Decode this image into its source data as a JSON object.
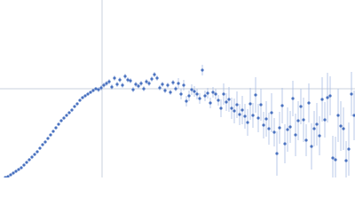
{
  "chart_data": {
    "type": "scatter",
    "xlim": [
      0,
      400
    ],
    "ylim": [
      0,
      200
    ],
    "series": [
      {
        "color": "#4a72c0",
        "error_color": "#a9bde3",
        "x": [
          6,
          9,
          12,
          15,
          18,
          21,
          24,
          27,
          30,
          33,
          36,
          39,
          42,
          45,
          48,
          51,
          54,
          57,
          60,
          63,
          66,
          69,
          72,
          75,
          78,
          81,
          84,
          87,
          90,
          93,
          96,
          99,
          102,
          105,
          108,
          111,
          114,
          117,
          120,
          123,
          126,
          129,
          132,
          135,
          138,
          141,
          144,
          147,
          150,
          153,
          156,
          159,
          162,
          165,
          168,
          171,
          174,
          177,
          180,
          183,
          186,
          189,
          192,
          195,
          198,
          201,
          204,
          207,
          210,
          213,
          216,
          219,
          222,
          225,
          228,
          231,
          234,
          237,
          240,
          243,
          246,
          249,
          252,
          255,
          258,
          261,
          264,
          267,
          270,
          273,
          276,
          279,
          282,
          285,
          288,
          291,
          294,
          297,
          300,
          303,
          306,
          309,
          312,
          315,
          318,
          321,
          324,
          327,
          330,
          333,
          336,
          339,
          342,
          345,
          348,
          351,
          354,
          357,
          360,
          363,
          366,
          369,
          372,
          375,
          378,
          381,
          384,
          387,
          390,
          393,
          396,
          399
        ],
        "values": [
          0,
          1,
          3,
          5,
          7,
          9,
          11,
          14,
          17,
          20,
          23,
          26,
          29,
          33,
          37,
          40,
          44,
          48,
          52,
          56,
          60,
          64,
          67,
          70,
          73,
          76,
          80,
          83,
          87,
          90,
          92,
          94,
          96,
          98,
          100,
          99,
          101,
          104,
          106,
          108,
          102,
          112,
          105,
          110,
          104,
          114,
          110,
          109,
          99,
          105,
          103,
          106,
          100,
          108,
          106,
          111,
          116,
          112,
          101,
          105,
          98,
          104,
          96,
          107,
          100,
          106,
          94,
          104,
          86,
          92,
          99,
          97,
          94,
          89,
          121,
          92,
          95,
          84,
          96,
          94,
          87,
          78,
          94,
          85,
          88,
          78,
          75,
          82,
          71,
          76,
          69,
          62,
          83,
          70,
          93,
          67,
          82,
          59,
          66,
          55,
          73,
          51,
          27,
          56,
          81,
          38,
          54,
          57,
          89,
          48,
          64,
          80,
          65,
          42,
          84,
          35,
          55,
          60,
          47,
          88,
          65,
          90,
          92,
          22,
          20,
          70,
          58,
          55,
          19,
          32,
          94,
          70
        ],
        "errors": [
          1,
          1,
          1,
          1,
          1,
          1,
          1,
          1,
          1,
          1,
          1,
          1,
          1,
          1,
          1,
          1,
          1,
          1,
          1,
          1,
          1,
          1,
          1,
          1,
          1,
          1,
          1,
          1,
          1,
          1,
          1,
          1,
          1,
          1,
          1,
          3,
          3,
          3,
          3,
          3,
          3,
          3,
          3,
          3,
          3,
          3,
          3,
          3,
          3,
          3,
          3,
          3,
          3,
          3,
          3,
          3,
          3,
          3,
          3,
          3,
          3,
          3,
          3,
          3,
          3,
          6,
          6,
          6,
          6,
          6,
          6,
          6,
          6,
          6,
          6,
          6,
          6,
          6,
          6,
          6,
          6,
          10,
          12,
          10,
          14,
          12,
          14,
          15,
          12,
          16,
          14,
          15,
          18,
          14,
          20,
          16,
          18,
          15,
          20,
          18,
          22,
          16,
          25,
          18,
          20,
          22,
          25,
          18,
          20,
          24,
          22,
          20,
          25,
          18,
          22,
          26,
          20,
          24,
          22,
          25,
          20,
          28,
          22,
          25,
          26,
          30,
          28,
          24,
          22,
          30,
          25,
          28
        ]
      }
    ]
  }
}
